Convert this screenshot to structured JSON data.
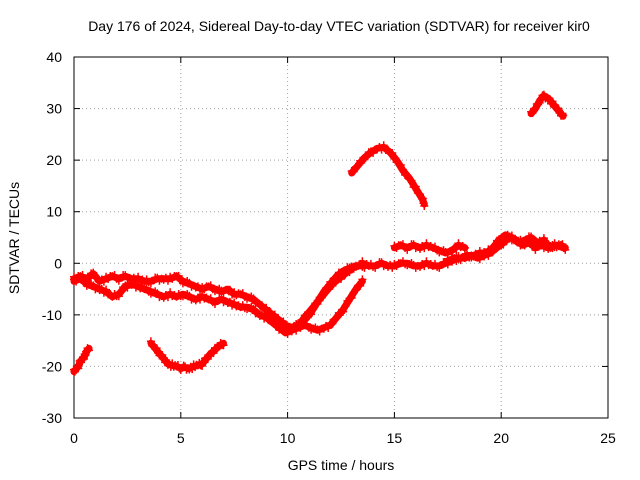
{
  "chart_data": {
    "type": "scatter",
    "title": "Day 176 of 2024, Sidereal Day-to-day VTEC variation (SDTVAR) for receiver kir0",
    "xlabel": "GPS time / hours",
    "ylabel": "SDTVAR / TECUs",
    "xlim": [
      0,
      25
    ],
    "ylim": [
      -30,
      40
    ],
    "xticks": [
      0,
      5,
      10,
      15,
      20,
      25
    ],
    "yticks": [
      -30,
      -20,
      -10,
      0,
      10,
      20,
      30,
      40
    ],
    "xtick_labels": [
      "0",
      "5",
      "10",
      "15",
      "20",
      "25"
    ],
    "ytick_labels": [
      "-30",
      "-20",
      "-10",
      "0",
      "10",
      "20",
      "30",
      "40"
    ],
    "grid": true,
    "marker": "+",
    "color": "#ff0000",
    "series": [
      {
        "name": "track-1",
        "x": [
          0.0,
          0.1,
          0.2,
          0.3,
          0.4,
          0.5,
          0.6,
          0.7
        ],
        "y": [
          -21,
          -20.5,
          -20,
          -19,
          -18.5,
          -18,
          -17,
          -16.5
        ]
      },
      {
        "name": "track-2",
        "x": [
          3.6,
          3.8,
          4.0,
          4.2,
          4.4,
          4.6,
          4.8,
          5.0,
          5.2,
          5.4,
          5.6,
          5.8,
          6.0,
          6.2,
          6.4,
          6.6,
          6.8,
          7.0
        ],
        "y": [
          -15.5,
          -16.5,
          -17.5,
          -18.5,
          -19.5,
          -19.8,
          -20,
          -20.3,
          -20.2,
          -20.4,
          -20,
          -19.8,
          -19.5,
          -18.5,
          -17.5,
          -16.8,
          -16,
          -15.5
        ]
      },
      {
        "name": "track-3",
        "x": [
          0.0,
          0.3,
          0.6,
          0.9,
          1.2,
          1.5,
          1.8,
          2.1,
          2.4,
          2.7,
          3.0,
          3.3,
          3.6,
          3.9,
          4.2,
          4.5,
          4.8,
          5.1,
          5.4,
          5.7,
          6.0,
          6.3,
          6.6,
          6.9,
          7.2,
          7.5,
          7.8,
          8.1,
          8.4,
          8.7,
          9.0,
          9.3,
          9.6,
          9.9,
          10.2,
          10.5,
          10.8,
          11.1,
          11.4,
          11.7,
          12.0,
          12.3,
          12.6,
          12.9,
          13.2
        ],
        "y": [
          -3,
          -2.5,
          -3,
          -2,
          -3.5,
          -3,
          -2.5,
          -3,
          -2.5,
          -3,
          -3,
          -3.5,
          -3.5,
          -3,
          -3,
          -3,
          -2.5,
          -3.5,
          -4,
          -4.5,
          -5,
          -4.5,
          -5,
          -5.5,
          -5,
          -6,
          -6,
          -6.5,
          -7,
          -8,
          -9,
          -10,
          -11,
          -12,
          -12.5,
          -12,
          -11,
          -9.5,
          -7.5,
          -5.5,
          -4,
          -2.5,
          -1.5,
          -1,
          -0.5
        ]
      },
      {
        "name": "track-4",
        "x": [
          0.0,
          0.3,
          0.6,
          0.9,
          1.2,
          1.5,
          1.8,
          2.1,
          2.4,
          2.7,
          3.0,
          3.3,
          3.6,
          3.9,
          4.2,
          4.5,
          4.8,
          5.1,
          5.4,
          5.7,
          6.0,
          6.3,
          6.6,
          6.9,
          7.2,
          7.5,
          7.8,
          8.1,
          8.4,
          8.7,
          9.0,
          9.3,
          9.6,
          9.9,
          10.2,
          10.5,
          10.8,
          11.1,
          11.4,
          11.7,
          12.0,
          12.3,
          12.6,
          12.9,
          13.2,
          13.5
        ],
        "y": [
          -3.5,
          -3,
          -4,
          -4.5,
          -5,
          -5.5,
          -6.5,
          -6,
          -4.5,
          -4,
          -4.5,
          -5,
          -5.5,
          -6,
          -6.5,
          -6,
          -6.5,
          -6,
          -6.5,
          -7,
          -6.5,
          -7,
          -7.5,
          -7,
          -7.5,
          -8,
          -8.5,
          -8.5,
          -9,
          -10,
          -10.5,
          -11.5,
          -12.5,
          -13.5,
          -13,
          -12.5,
          -12,
          -12.5,
          -13,
          -12.5,
          -12,
          -10.5,
          -9,
          -7,
          -5,
          -3.5
        ]
      },
      {
        "name": "track-5",
        "x": [
          10.0,
          10.3,
          10.6,
          10.9,
          11.2,
          11.5,
          11.8,
          12.1,
          12.4,
          12.7,
          13.0,
          13.3,
          13.6
        ],
        "y": [
          -13,
          -12.5,
          -11.5,
          -10,
          -8.5,
          -7,
          -5.5,
          -4,
          -3,
          -2,
          -1,
          -0.5,
          -0.5
        ]
      },
      {
        "name": "track-6",
        "x": [
          13.0,
          13.3,
          13.6,
          13.9,
          14.2,
          14.5,
          14.8,
          15.1,
          15.4,
          15.7,
          16.0,
          16.3,
          16.4
        ],
        "y": [
          17.5,
          19,
          20.5,
          21.5,
          22.3,
          22.5,
          21.5,
          20,
          18,
          16.5,
          14.5,
          12.5,
          11.5
        ]
      },
      {
        "name": "track-7",
        "x": [
          13.5,
          13.8,
          14.1,
          14.4,
          14.7,
          15.0,
          15.3,
          15.6,
          15.9,
          16.2,
          16.5,
          16.8,
          17.1,
          17.4,
          17.7,
          18.0,
          18.3,
          18.6,
          18.9,
          19.2,
          19.5,
          19.8,
          20.1,
          20.4,
          20.7,
          21.0,
          21.3,
          21.6,
          21.9,
          22.2,
          22.5,
          22.8,
          23.0
        ],
        "y": [
          0,
          -0.5,
          -0.5,
          0,
          -0.5,
          -0.5,
          0,
          0,
          -0.5,
          -0.5,
          0,
          -0.5,
          -0.5,
          0,
          0.5,
          1,
          1,
          1.5,
          1,
          1.5,
          2,
          3,
          4,
          5,
          4.5,
          3.5,
          4,
          3,
          3.5,
          3,
          3.5,
          3.5,
          3
        ]
      },
      {
        "name": "track-8",
        "x": [
          15.0,
          15.3,
          15.6,
          15.9,
          16.2,
          16.5,
          16.8,
          17.1,
          17.4,
          17.7,
          18.0,
          18.3
        ],
        "y": [
          3,
          3.5,
          3,
          3.5,
          3,
          3.5,
          3,
          2.5,
          2,
          2.5,
          3.5,
          3
        ]
      },
      {
        "name": "track-9",
        "x": [
          17.5,
          17.8,
          18.1,
          18.4,
          18.7,
          19.0,
          19.3,
          19.6,
          19.9,
          20.2,
          20.5,
          20.8,
          21.1,
          21.4,
          21.7,
          22.0,
          22.3,
          22.6,
          22.9
        ],
        "y": [
          0.5,
          1,
          1,
          1.5,
          1.5,
          2,
          2,
          3,
          4.5,
          5.5,
          5,
          4,
          4.5,
          5,
          4,
          4.5,
          3,
          3.5,
          3
        ]
      },
      {
        "name": "track-10",
        "x": [
          21.4,
          21.6,
          21.8,
          22.0,
          22.2,
          22.4,
          22.6,
          22.8,
          22.9
        ],
        "y": [
          29,
          30,
          31.5,
          32.5,
          32,
          31,
          30,
          29,
          28.5
        ]
      }
    ]
  }
}
